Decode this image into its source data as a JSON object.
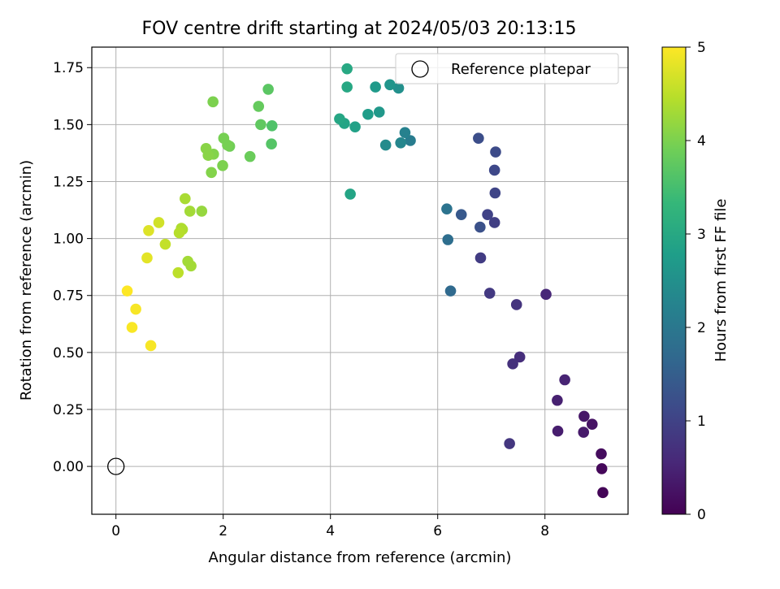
{
  "chart_data": {
    "type": "scatter",
    "title": "FOV centre drift starting at 2024/05/03 20:13:15",
    "xlabel": "Angular distance from reference (arcmin)",
    "ylabel": "Rotation from reference (arcmin)",
    "xlim": [
      -0.45,
      9.55
    ],
    "ylim": [
      -0.21,
      1.84
    ],
    "xticks": [
      0,
      2,
      4,
      6,
      8
    ],
    "xtick_labels": [
      "0",
      "2",
      "4",
      "6",
      "8"
    ],
    "yticks": [
      0.0,
      0.25,
      0.5,
      0.75,
      1.0,
      1.25,
      1.5,
      1.75
    ],
    "ytick_labels": [
      "0.00",
      "0.25",
      "0.50",
      "0.75",
      "1.00",
      "1.25",
      "1.50",
      "1.75"
    ],
    "grid": true,
    "legend": {
      "placement": "top-right",
      "entries": [
        {
          "label": "Reference platepar",
          "marker": "open-circle",
          "color": "#000000"
        }
      ]
    },
    "reference_point": {
      "x": 0,
      "y": 0,
      "label": "Reference platepar"
    },
    "colorbar": {
      "label": "Hours from first FF file",
      "min": 0,
      "max": 5,
      "ticks": [
        0,
        1,
        2,
        3,
        4,
        5
      ],
      "tick_labels": [
        "0",
        "1",
        "2",
        "3",
        "4",
        "5"
      ],
      "colormap": "viridis",
      "stops": [
        "#440154",
        "#482878",
        "#3e4989",
        "#31688e",
        "#26828e",
        "#1f9e89",
        "#35b779",
        "#6ece58",
        "#b5de2b",
        "#fde725"
      ]
    },
    "points": [
      [
        9.08,
        -0.115,
        0.05
      ],
      [
        9.06,
        -0.01,
        0.1
      ],
      [
        9.05,
        0.055,
        0.15
      ],
      [
        8.88,
        0.185,
        0.25
      ],
      [
        8.73,
        0.22,
        0.3
      ],
      [
        8.72,
        0.15,
        0.35
      ],
      [
        8.24,
        0.155,
        0.4
      ],
      [
        8.23,
        0.29,
        0.45
      ],
      [
        8.37,
        0.38,
        0.5
      ],
      [
        8.02,
        0.755,
        0.55
      ],
      [
        7.53,
        0.48,
        0.65
      ],
      [
        7.4,
        0.45,
        0.7
      ],
      [
        7.34,
        0.1,
        0.8
      ],
      [
        7.47,
        0.71,
        0.75
      ],
      [
        6.97,
        0.76,
        0.85
      ],
      [
        6.8,
        0.915,
        0.9
      ],
      [
        7.06,
        1.07,
        0.95
      ],
      [
        6.93,
        1.105,
        1.0
      ],
      [
        7.07,
        1.2,
        1.05
      ],
      [
        7.06,
        1.3,
        1.1
      ],
      [
        7.08,
        1.38,
        1.15
      ],
      [
        6.76,
        1.44,
        1.2
      ],
      [
        6.79,
        1.05,
        1.25
      ],
      [
        6.44,
        1.105,
        1.4
      ],
      [
        6.24,
        0.77,
        1.7
      ],
      [
        6.19,
        0.995,
        1.8
      ],
      [
        6.17,
        1.13,
        1.9
      ],
      [
        5.49,
        1.43,
        2.1
      ],
      [
        5.39,
        1.465,
        2.2
      ],
      [
        5.31,
        1.42,
        2.3
      ],
      [
        5.03,
        1.41,
        2.4
      ],
      [
        5.27,
        1.66,
        2.5
      ],
      [
        5.11,
        1.675,
        2.6
      ],
      [
        4.91,
        1.555,
        2.65
      ],
      [
        4.84,
        1.665,
        2.7
      ],
      [
        4.7,
        1.545,
        2.75
      ],
      [
        4.46,
        1.49,
        2.85
      ],
      [
        4.26,
        1.505,
        2.9
      ],
      [
        4.17,
        1.525,
        2.95
      ],
      [
        4.37,
        1.195,
        2.9
      ],
      [
        4.31,
        1.665,
        2.98
      ],
      [
        4.31,
        1.745,
        3.0
      ],
      [
        2.91,
        1.495,
        3.6
      ],
      [
        2.9,
        1.415,
        3.65
      ],
      [
        2.84,
        1.655,
        3.7
      ],
      [
        2.7,
        1.5,
        3.75
      ],
      [
        2.66,
        1.58,
        3.8
      ],
      [
        2.5,
        1.36,
        3.85
      ],
      [
        2.12,
        1.405,
        3.9
      ],
      [
        2.08,
        1.41,
        3.95
      ],
      [
        2.01,
        1.44,
        3.95
      ],
      [
        1.99,
        1.32,
        4.0
      ],
      [
        1.81,
        1.6,
        4.0
      ],
      [
        1.78,
        1.29,
        4.05
      ],
      [
        1.82,
        1.37,
        4.05
      ],
      [
        1.72,
        1.365,
        4.1
      ],
      [
        1.68,
        1.395,
        4.1
      ],
      [
        1.6,
        1.12,
        4.2
      ],
      [
        1.4,
        0.88,
        4.3
      ],
      [
        1.34,
        0.9,
        4.3
      ],
      [
        1.38,
        1.12,
        4.3
      ],
      [
        1.29,
        1.175,
        4.35
      ],
      [
        1.24,
        1.04,
        4.4
      ],
      [
        1.22,
        1.045,
        4.4
      ],
      [
        1.18,
        1.025,
        4.45
      ],
      [
        1.16,
        0.85,
        4.5
      ],
      [
        0.92,
        0.975,
        4.55
      ],
      [
        0.8,
        1.07,
        4.65
      ],
      [
        0.61,
        1.035,
        4.75
      ],
      [
        0.58,
        0.915,
        4.8
      ],
      [
        0.65,
        0.53,
        4.95
      ],
      [
        0.37,
        0.69,
        4.95
      ],
      [
        0.3,
        0.61,
        4.97
      ],
      [
        0.21,
        0.77,
        5.0
      ]
    ]
  }
}
